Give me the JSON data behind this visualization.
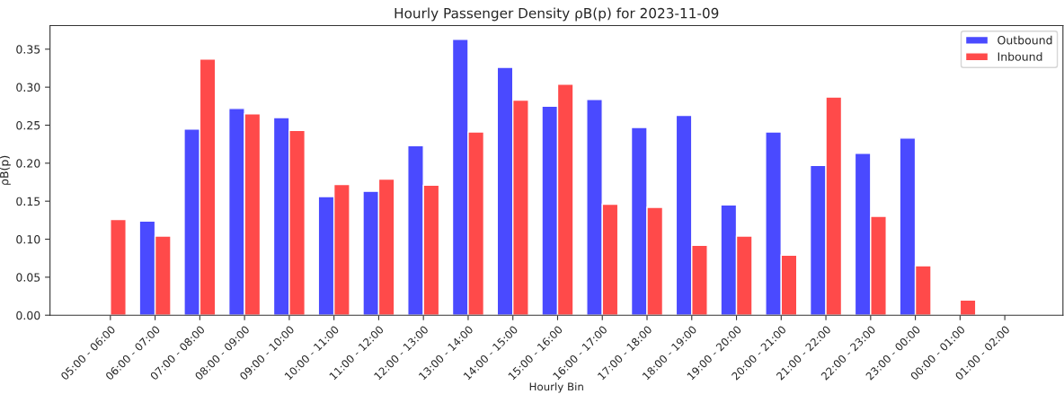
{
  "chart_data": {
    "type": "bar",
    "title": "Hourly Passenger Density ρB(p) for 2023-11-09",
    "xlabel": "Hourly Bin",
    "ylabel": "ρB(p)",
    "categories": [
      "05:00 - 06:00",
      "06:00 - 07:00",
      "07:00 - 08:00",
      "08:00 - 09:00",
      "09:00 - 10:00",
      "10:00 - 11:00",
      "11:00 - 12:00",
      "12:00 - 13:00",
      "13:00 - 14:00",
      "14:00 - 15:00",
      "15:00 - 16:00",
      "16:00 - 17:00",
      "17:00 - 18:00",
      "18:00 - 19:00",
      "19:00 - 20:00",
      "20:00 - 21:00",
      "21:00 - 22:00",
      "22:00 - 23:00",
      "23:00 - 00:00",
      "00:00 - 01:00",
      "01:00 - 02:00"
    ],
    "series": [
      {
        "name": "Outbound",
        "color": "#4a4aff",
        "values": [
          null,
          0.124,
          0.245,
          0.272,
          0.26,
          0.156,
          0.163,
          0.223,
          0.363,
          0.326,
          0.275,
          0.284,
          0.247,
          0.263,
          0.145,
          0.241,
          0.197,
          0.213,
          0.233,
          null,
          null
        ]
      },
      {
        "name": "Inbound",
        "color": "#ff4a4a",
        "values": [
          0.126,
          0.104,
          0.337,
          0.265,
          0.243,
          0.172,
          0.179,
          0.171,
          0.241,
          0.283,
          0.304,
          0.146,
          0.142,
          0.092,
          0.104,
          0.079,
          0.287,
          0.13,
          0.065,
          0.02,
          null
        ]
      }
    ],
    "ylim": [
      0,
      0.381
    ],
    "yticks": [
      {
        "value": 0,
        "label": "0.00"
      },
      {
        "value": 0.05,
        "label": "0.05"
      },
      {
        "value": 0.1,
        "label": "0.10"
      },
      {
        "value": 0.15,
        "label": "0.15"
      },
      {
        "value": 0.2,
        "label": "0.20"
      },
      {
        "value": 0.25,
        "label": "0.25"
      },
      {
        "value": 0.3,
        "label": "0.30"
      },
      {
        "value": 0.35,
        "label": "0.35"
      }
    ],
    "legend": "top right",
    "grid": false
  }
}
